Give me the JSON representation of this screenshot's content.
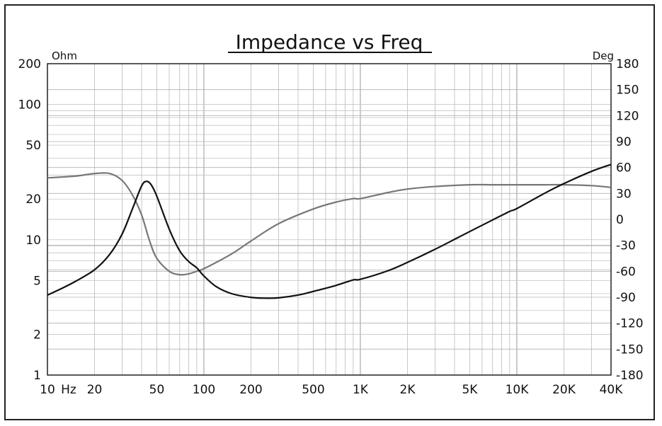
{
  "chart_data": {
    "type": "line",
    "title": "Impedance vs Freq",
    "left_unit": "Ohm",
    "right_unit": "Deg",
    "x_scale": "log",
    "xlim": [
      10,
      40000
    ],
    "ylim_left": [
      1,
      200
    ],
    "ylim_right": [
      -180,
      180
    ],
    "y_left_scale": "log",
    "grid": true,
    "x_ticks": [
      {
        "value": 10,
        "label": "10"
      },
      {
        "value": 20,
        "label": "20"
      },
      {
        "value": 50,
        "label": "50"
      },
      {
        "value": 100,
        "label": "100"
      },
      {
        "value": 200,
        "label": "200"
      },
      {
        "value": 500,
        "label": "500"
      },
      {
        "value": 1000,
        "label": "1K"
      },
      {
        "value": 2000,
        "label": "2K"
      },
      {
        "value": 5000,
        "label": "5K"
      },
      {
        "value": 10000,
        "label": "10K"
      },
      {
        "value": 20000,
        "label": "20K"
      },
      {
        "value": 40000,
        "label": "40K"
      }
    ],
    "x_unit_label": "Hz",
    "y_left_ticks": [
      {
        "value": 1,
        "label": "1"
      },
      {
        "value": 2,
        "label": "2"
      },
      {
        "value": 5,
        "label": "5"
      },
      {
        "value": 10,
        "label": "10"
      },
      {
        "value": 20,
        "label": "20"
      },
      {
        "value": 50,
        "label": "50"
      },
      {
        "value": 100,
        "label": "100"
      },
      {
        "value": 200,
        "label": "200"
      }
    ],
    "y_right_ticks": [
      {
        "value": 180,
        "label": "180"
      },
      {
        "value": 150,
        "label": "150"
      },
      {
        "value": 120,
        "label": "120"
      },
      {
        "value": 90,
        "label": "90"
      },
      {
        "value": 60,
        "label": "60"
      },
      {
        "value": 30,
        "label": "30"
      },
      {
        "value": 0,
        "label": "0"
      },
      {
        "value": -30,
        "label": "-30"
      },
      {
        "value": -60,
        "label": "-60"
      },
      {
        "value": -90,
        "label": "-90"
      },
      {
        "value": -120,
        "label": "-120"
      },
      {
        "value": -150,
        "label": "-150"
      },
      {
        "value": -180,
        "label": "-180"
      }
    ],
    "series": [
      {
        "axis": "left",
        "color": "#111111",
        "x": [
          10,
          12,
          15,
          20,
          25,
          30,
          35,
          40,
          43,
          46,
          50,
          60,
          70,
          80,
          90,
          100,
          120,
          150,
          200,
          250,
          300,
          400,
          500,
          700,
          900,
          1000,
          1500,
          2000,
          3000,
          5000,
          7000,
          9000,
          10000,
          15000,
          20000,
          30000,
          40000
        ],
        "values": [
          3.9,
          4.3,
          4.9,
          6.0,
          7.8,
          11.0,
          17.0,
          25.0,
          27.0,
          25.5,
          21.0,
          12.0,
          8.3,
          6.9,
          6.2,
          5.4,
          4.5,
          4.0,
          3.75,
          3.7,
          3.72,
          3.9,
          4.15,
          4.6,
          5.05,
          5.1,
          5.9,
          6.8,
          8.5,
          11.5,
          14.0,
          16.2,
          17.0,
          22.0,
          26.0,
          32.0,
          36.0
        ]
      },
      {
        "axis": "right",
        "color": "#777777",
        "x": [
          10,
          15,
          20,
          25,
          30,
          35,
          40,
          45,
          50,
          60,
          70,
          80,
          90,
          100,
          150,
          200,
          300,
          500,
          700,
          900,
          1000,
          1500,
          2000,
          3000,
          5000,
          7000,
          10000,
          15000,
          20000,
          30000,
          40000
        ],
        "values": [
          48,
          50,
          53,
          53,
          45,
          28,
          5,
          -25,
          -45,
          -60,
          -64,
          -63,
          -60,
          -57,
          -40,
          -25,
          -5,
          12,
          20,
          24,
          24,
          31,
          35,
          38,
          40,
          40,
          40,
          40,
          40,
          39,
          37
        ]
      }
    ]
  }
}
